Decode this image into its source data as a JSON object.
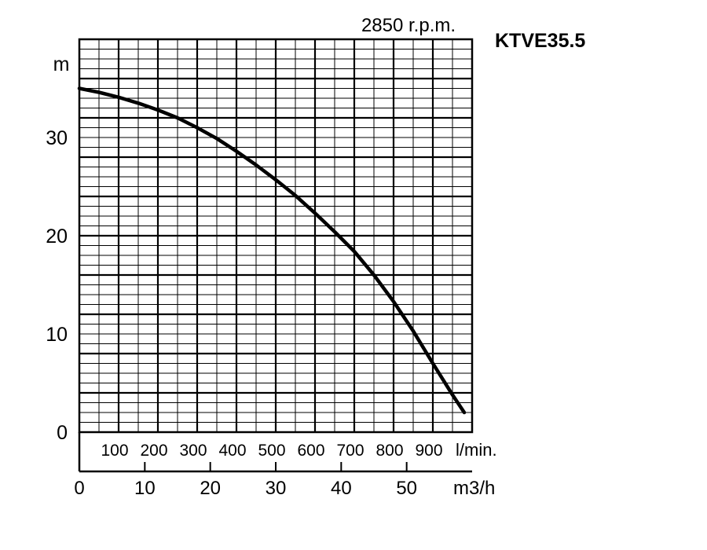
{
  "chart_data": {
    "type": "line",
    "title": "KTVE35.5",
    "subtitle": "2850 r.p.m.",
    "ylabel": "m",
    "ylim": [
      0,
      40
    ],
    "y_ticks": [
      "0",
      "10",
      "20",
      "30"
    ],
    "y_tick_values": [
      0,
      10,
      20,
      30
    ],
    "x_primary": {
      "label": "l/min.",
      "range": [
        0,
        1000
      ],
      "ticks": [
        "100",
        "200",
        "300",
        "400",
        "500",
        "600",
        "700",
        "800",
        "900"
      ],
      "tick_values": [
        100,
        200,
        300,
        400,
        500,
        600,
        700,
        800,
        900
      ]
    },
    "x_secondary": {
      "label": "m3/h",
      "ticks": [
        "0",
        "10",
        "20",
        "30",
        "40",
        "50"
      ],
      "tick_values": [
        0,
        10,
        20,
        30,
        40,
        50
      ]
    },
    "grid": true,
    "series": [
      {
        "x": [
          0,
          50,
          100,
          150,
          200,
          250,
          300,
          350,
          400,
          450,
          500,
          550,
          600,
          650,
          700,
          750,
          800,
          850,
          900,
          950,
          980
        ],
        "values": [
          35.0,
          34.6,
          34.1,
          33.5,
          32.8,
          32.0,
          31.0,
          29.9,
          28.6,
          27.2,
          25.7,
          24.1,
          22.3,
          20.4,
          18.4,
          16.0,
          13.3,
          10.3,
          7.0,
          3.8,
          2.0
        ]
      }
    ]
  }
}
